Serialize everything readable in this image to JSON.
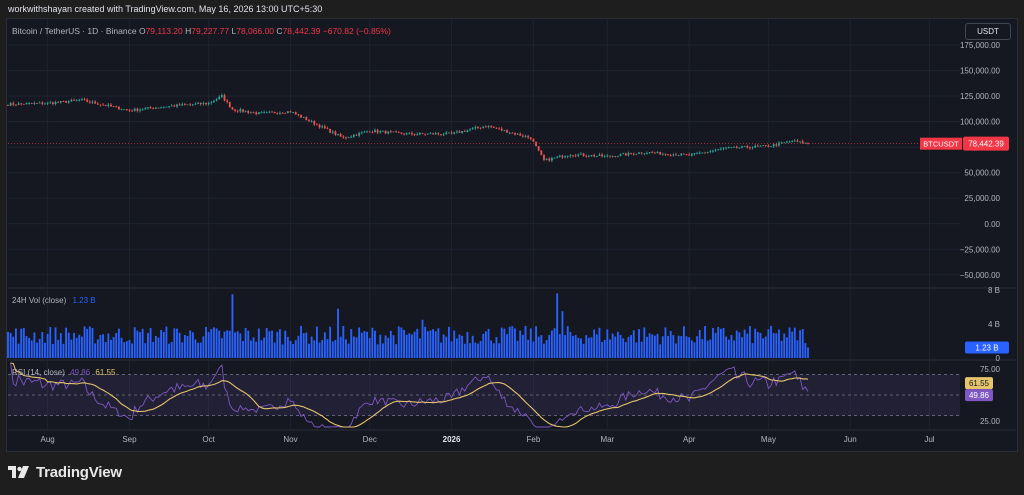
{
  "header": {
    "attribution": "workwithshayan created with TradingView.com, May 16, 2026 13:00 UTC+5:30"
  },
  "legend": {
    "symbol": "Bitcoin / TetherUS · 1D · Binance",
    "open_label": "O",
    "open": "79,113.20",
    "high_label": "H",
    "high": "79,227.77",
    "low_label": "L",
    "low": "78,066.00",
    "close_label": "C",
    "close": "78,442.39",
    "change": "−670.82 (−0.85%)"
  },
  "currency_button": "USDT",
  "price_tag": {
    "label": "BTCUSDT",
    "value": "78,442.39",
    "color": "#f23645"
  },
  "volume_legend": {
    "name": "24H Vol (close)",
    "value": "1.23 B"
  },
  "rsi_legend": {
    "name": "RSI (14, close)",
    "rsi": "49.86",
    "ma": "61.55"
  },
  "footer": {
    "brand": "TradingView"
  },
  "colors": {
    "up": "#26a69a",
    "down": "#ef5350",
    "volume": "#2962ff",
    "rsi": "#7e57c2",
    "rsi_ma": "#e5c46b"
  },
  "chart_data": [
    {
      "type": "candlestick",
      "title": "Bitcoin / TetherUS · 1D · Binance",
      "x_ticks": [
        "Aug",
        "Sep",
        "Oct",
        "Nov",
        "Dec",
        "2026",
        "Feb",
        "Mar",
        "Apr",
        "May",
        "Jun",
        "Jul"
      ],
      "y_ticks": [
        "175,000.00",
        "150,000.00",
        "125,000.00",
        "100,000.00",
        "75,000.00",
        "50,000.00",
        "25,000.00",
        "0.00",
        "−25,000.00",
        "−50,000.00"
      ],
      "ylim": [
        -60000,
        180000
      ],
      "approx_close_series": {
        "dates": [
          "2025-07-17",
          "2025-08-01",
          "2025-08-14",
          "2025-09-01",
          "2025-09-15",
          "2025-10-01",
          "2025-10-06",
          "2025-10-10",
          "2025-10-20",
          "2025-11-01",
          "2025-11-21",
          "2025-12-01",
          "2025-12-15",
          "2026-01-01",
          "2026-01-14",
          "2026-01-31",
          "2026-02-05",
          "2026-02-15",
          "2026-03-01",
          "2026-03-15",
          "2026-04-01",
          "2026-04-15",
          "2026-05-01",
          "2026-05-10",
          "2026-05-16"
        ],
        "close": [
          117000,
          118000,
          121000,
          111000,
          115000,
          118000,
          125000,
          112000,
          108000,
          110000,
          84000,
          91000,
          88000,
          88000,
          96000,
          84000,
          62000,
          68000,
          66000,
          70000,
          67000,
          74000,
          76000,
          81000,
          78442
        ]
      },
      "last_price": 78442.39
    },
    {
      "type": "bar",
      "title": "24H Vol (close)",
      "y_ticks": [
        "8 B",
        "4 B",
        "0"
      ],
      "ylim": [
        0,
        8
      ],
      "last_value": "1.23 B"
    },
    {
      "type": "line",
      "title": "RSI (14, close)",
      "y_ticks": [
        "75.00",
        "25.00"
      ],
      "ylim": [
        18,
        82
      ],
      "bands": [
        70,
        50,
        30
      ],
      "rsi_last": 49.86,
      "ma_last": 61.55
    }
  ]
}
